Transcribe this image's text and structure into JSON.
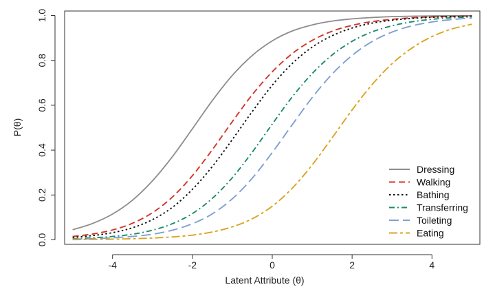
{
  "chart_data": {
    "type": "line",
    "xlabel": "Latent Attribute (θ)",
    "ylabel": "P(θ)",
    "xlim": [
      -5.2,
      5.2
    ],
    "ylim": [
      -0.02,
      1.02
    ],
    "x_ticks": [
      -4,
      -2,
      0,
      2,
      4
    ],
    "x_tick_labels": [
      "-4",
      "-2",
      "0",
      "2",
      "4"
    ],
    "y_ticks": [
      0.0,
      0.2,
      0.4,
      0.6,
      0.8,
      1.0
    ],
    "y_tick_labels": [
      "0.0",
      "0.2",
      "0.4",
      "0.6",
      "0.8",
      "1.0"
    ],
    "grid": false,
    "legend_position": "bottom-right",
    "x": [
      -5,
      -4.5,
      -4,
      -3.5,
      -3,
      -2.5,
      -2,
      -1.5,
      -1,
      -0.5,
      0,
      0.5,
      1,
      1.5,
      2,
      2.5,
      3,
      3.5,
      4,
      4.5,
      5
    ],
    "series": [
      {
        "name": "Dressing",
        "color": "#8c8c8c",
        "dash": "solid",
        "values": [
          0.045,
          0.073,
          0.115,
          0.177,
          0.263,
          0.371,
          0.495,
          0.621,
          0.733,
          0.822,
          0.887,
          0.931,
          0.958,
          0.975,
          0.985,
          0.991,
          0.995,
          0.997,
          0.998,
          0.999,
          0.999
        ]
      },
      {
        "name": "Walking",
        "color": "#d2352b",
        "dash": "dashed",
        "values": [
          0.015,
          0.026,
          0.044,
          0.074,
          0.121,
          0.191,
          0.286,
          0.402,
          0.527,
          0.647,
          0.749,
          0.83,
          0.889,
          0.93,
          0.956,
          0.973,
          0.983,
          0.99,
          0.994,
          0.996,
          0.998
        ]
      },
      {
        "name": "Bathing",
        "color": "#111111",
        "dash": "dotted",
        "values": [
          0.011,
          0.019,
          0.032,
          0.054,
          0.09,
          0.145,
          0.225,
          0.327,
          0.447,
          0.572,
          0.689,
          0.786,
          0.859,
          0.91,
          0.944,
          0.966,
          0.979,
          0.987,
          0.992,
          0.995,
          0.997
        ]
      },
      {
        "name": "Transferring",
        "color": "#1b8a6b",
        "dash": "dashdot",
        "values": [
          0.005,
          0.009,
          0.015,
          0.025,
          0.043,
          0.072,
          0.117,
          0.185,
          0.277,
          0.391,
          0.516,
          0.637,
          0.741,
          0.824,
          0.885,
          0.927,
          0.954,
          0.972,
          0.983,
          0.99,
          0.994
        ]
      },
      {
        "name": "Toileting",
        "color": "#7f9fd4",
        "dash": "longdash",
        "values": [
          0.003,
          0.005,
          0.009,
          0.015,
          0.025,
          0.043,
          0.072,
          0.116,
          0.183,
          0.275,
          0.389,
          0.513,
          0.634,
          0.739,
          0.822,
          0.884,
          0.926,
          0.954,
          0.971,
          0.982,
          0.989
        ]
      },
      {
        "name": "Eating",
        "color": "#d9a520",
        "dash": "twodash",
        "values": [
          0.001,
          0.002,
          0.003,
          0.005,
          0.008,
          0.013,
          0.021,
          0.035,
          0.058,
          0.094,
          0.15,
          0.23,
          0.334,
          0.455,
          0.579,
          0.692,
          0.785,
          0.855,
          0.906,
          0.94,
          0.961
        ]
      }
    ]
  }
}
